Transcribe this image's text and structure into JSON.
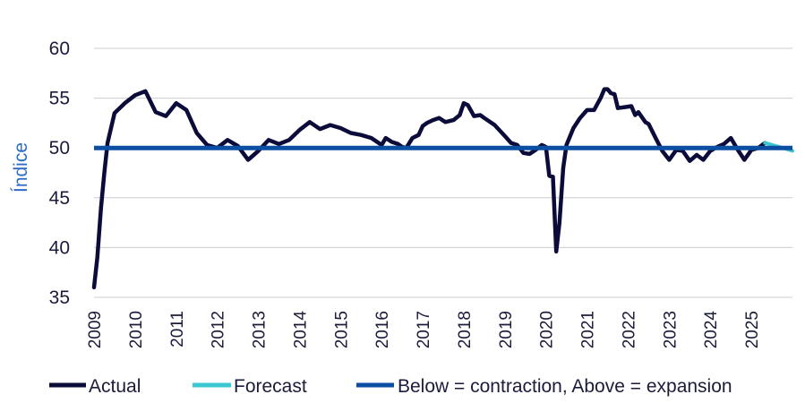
{
  "chart_data": {
    "type": "line",
    "ylabel": "Índice",
    "xlabel": "",
    "ylim": [
      35,
      60
    ],
    "yticks": [
      "35",
      "40",
      "45",
      "50",
      "55",
      "60"
    ],
    "xlim": [
      2009.0,
      2026.0
    ],
    "xticks": [
      "2009",
      "2010",
      "2011",
      "2012",
      "2013",
      "2014",
      "2015",
      "2016",
      "2017",
      "2018",
      "2019",
      "2020",
      "2021",
      "2022",
      "2023",
      "2024",
      "2025"
    ],
    "grid": "horizontal",
    "legend_position": "bottom",
    "threshold": {
      "name": "Below = contraction, Above = expansion",
      "value": 50,
      "color": "#0b4ea2"
    },
    "series": [
      {
        "name": "Actual",
        "color": "#0c0c3a",
        "points": [
          [
            2009.0,
            36.0
          ],
          [
            2009.08,
            39.0
          ],
          [
            2009.17,
            44.0
          ],
          [
            2009.25,
            47.5
          ],
          [
            2009.33,
            50.5
          ],
          [
            2009.5,
            53.5
          ],
          [
            2009.75,
            54.5
          ],
          [
            2010.0,
            55.3
          ],
          [
            2010.25,
            55.7
          ],
          [
            2010.5,
            53.6
          ],
          [
            2010.75,
            53.2
          ],
          [
            2011.0,
            54.5
          ],
          [
            2011.25,
            53.8
          ],
          [
            2011.5,
            51.5
          ],
          [
            2011.75,
            50.3
          ],
          [
            2012.0,
            50.0
          ],
          [
            2012.25,
            50.8
          ],
          [
            2012.5,
            50.2
          ],
          [
            2012.75,
            48.8
          ],
          [
            2013.0,
            49.7
          ],
          [
            2013.25,
            50.8
          ],
          [
            2013.5,
            50.4
          ],
          [
            2013.75,
            50.8
          ],
          [
            2014.0,
            51.8
          ],
          [
            2014.25,
            52.6
          ],
          [
            2014.5,
            51.9
          ],
          [
            2014.75,
            52.3
          ],
          [
            2015.0,
            52.0
          ],
          [
            2015.25,
            51.5
          ],
          [
            2015.5,
            51.3
          ],
          [
            2015.75,
            51.0
          ],
          [
            2016.0,
            50.3
          ],
          [
            2016.1,
            51.0
          ],
          [
            2016.25,
            50.6
          ],
          [
            2016.4,
            50.4
          ],
          [
            2016.5,
            50.1
          ],
          [
            2016.6,
            50.0
          ],
          [
            2016.75,
            51.0
          ],
          [
            2016.9,
            51.3
          ],
          [
            2017.0,
            52.2
          ],
          [
            2017.1,
            52.5
          ],
          [
            2017.25,
            52.8
          ],
          [
            2017.4,
            53.0
          ],
          [
            2017.55,
            52.6
          ],
          [
            2017.75,
            52.8
          ],
          [
            2017.9,
            53.3
          ],
          [
            2018.0,
            54.5
          ],
          [
            2018.1,
            54.3
          ],
          [
            2018.25,
            53.2
          ],
          [
            2018.4,
            53.3
          ],
          [
            2018.5,
            53.0
          ],
          [
            2018.75,
            52.3
          ],
          [
            2019.0,
            51.2
          ],
          [
            2019.15,
            50.5
          ],
          [
            2019.3,
            50.3
          ],
          [
            2019.45,
            49.5
          ],
          [
            2019.6,
            49.4
          ],
          [
            2019.75,
            49.8
          ],
          [
            2019.9,
            50.3
          ],
          [
            2020.0,
            50.1
          ],
          [
            2020.08,
            47.2
          ],
          [
            2020.17,
            47.1
          ],
          [
            2020.25,
            39.6
          ],
          [
            2020.33,
            42.5
          ],
          [
            2020.42,
            48.0
          ],
          [
            2020.5,
            50.3
          ],
          [
            2020.67,
            52.0
          ],
          [
            2020.83,
            53.0
          ],
          [
            2021.0,
            53.8
          ],
          [
            2021.17,
            53.8
          ],
          [
            2021.33,
            55.0
          ],
          [
            2021.42,
            55.9
          ],
          [
            2021.5,
            55.9
          ],
          [
            2021.58,
            55.5
          ],
          [
            2021.67,
            55.4
          ],
          [
            2021.75,
            54.0
          ],
          [
            2021.92,
            54.1
          ],
          [
            2022.08,
            54.2
          ],
          [
            2022.17,
            53.3
          ],
          [
            2022.25,
            53.6
          ],
          [
            2022.42,
            52.6
          ],
          [
            2022.5,
            52.4
          ],
          [
            2022.67,
            51.0
          ],
          [
            2022.83,
            49.7
          ],
          [
            2023.0,
            48.8
          ],
          [
            2023.17,
            49.8
          ],
          [
            2023.33,
            49.7
          ],
          [
            2023.5,
            48.7
          ],
          [
            2023.67,
            49.3
          ],
          [
            2023.83,
            48.8
          ],
          [
            2024.0,
            49.7
          ],
          [
            2024.17,
            50.1
          ],
          [
            2024.33,
            50.4
          ],
          [
            2024.5,
            51.0
          ],
          [
            2024.67,
            49.8
          ],
          [
            2024.83,
            48.8
          ],
          [
            2025.0,
            49.8
          ],
          [
            2025.17,
            50.0
          ],
          [
            2025.33,
            50.5
          ]
        ]
      },
      {
        "name": "Forecast",
        "color": "#3cc8d0",
        "points": [
          [
            2025.33,
            50.5
          ],
          [
            2025.6,
            50.2
          ],
          [
            2025.85,
            49.9
          ],
          [
            2026.0,
            49.7
          ]
        ]
      }
    ]
  }
}
